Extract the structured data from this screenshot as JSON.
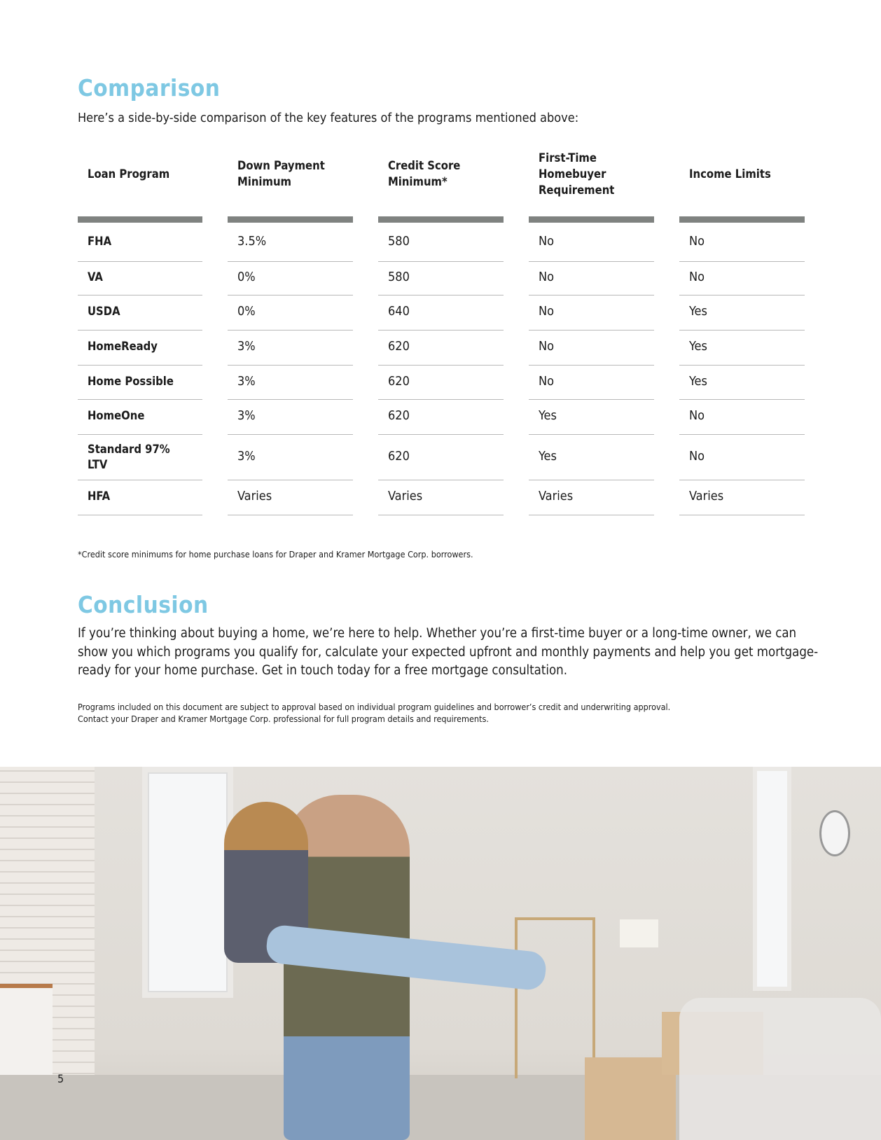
{
  "comparison": {
    "title": "Comparison",
    "intro": "Here’s a side-by-side comparison of the key features of the programs mentioned above:",
    "headers": [
      "Loan Program",
      "Down Payment Minimum",
      "Credit Score Minimum*",
      "First-Time Homebuyer Requirement",
      "Income Limits"
    ],
    "rows": [
      [
        "FHA",
        "3.5%",
        "580",
        "No",
        "No"
      ],
      [
        "VA",
        "0%",
        "580",
        "No",
        "No"
      ],
      [
        "USDA",
        "0%",
        "640",
        "No",
        "Yes"
      ],
      [
        "HomeReady",
        "3%",
        "620",
        "No",
        "Yes"
      ],
      [
        "Home Possible",
        "3%",
        "620",
        "No",
        "Yes"
      ],
      [
        "HomeOne",
        "3%",
        "620",
        "Yes",
        "No"
      ],
      [
        "Standard 97% LTV",
        "3%",
        "620",
        "Yes",
        "No"
      ],
      [
        "HFA",
        "Varies",
        "Varies",
        "Varies",
        "Varies"
      ]
    ],
    "footnote": "*Credit score minimums for home purchase loans for Draper and Kramer Mortgage Corp. borrowers."
  },
  "conclusion": {
    "title": "Conclusion",
    "body": "If you’re thinking about buying a home, we’re here to help. Whether you’re a first-time buyer or a long-time owner, we can show you which programs you qualify for, calculate your expected upfront and monthly payments and help you get mortgage-ready for your home purchase. Get in touch today for a free mortgage consultation.",
    "disclaimer_1": "Programs included on this document are subject to approval based on individual program guidelines and borrower’s credit and underwriting approval.",
    "disclaimer_2": "Contact your Draper and Kramer Mortgage Corp. professional for full program details and requirements."
  },
  "page_number": "5",
  "colors": {
    "heading": "#7ec8e3",
    "header_bar": "#7f8280"
  }
}
